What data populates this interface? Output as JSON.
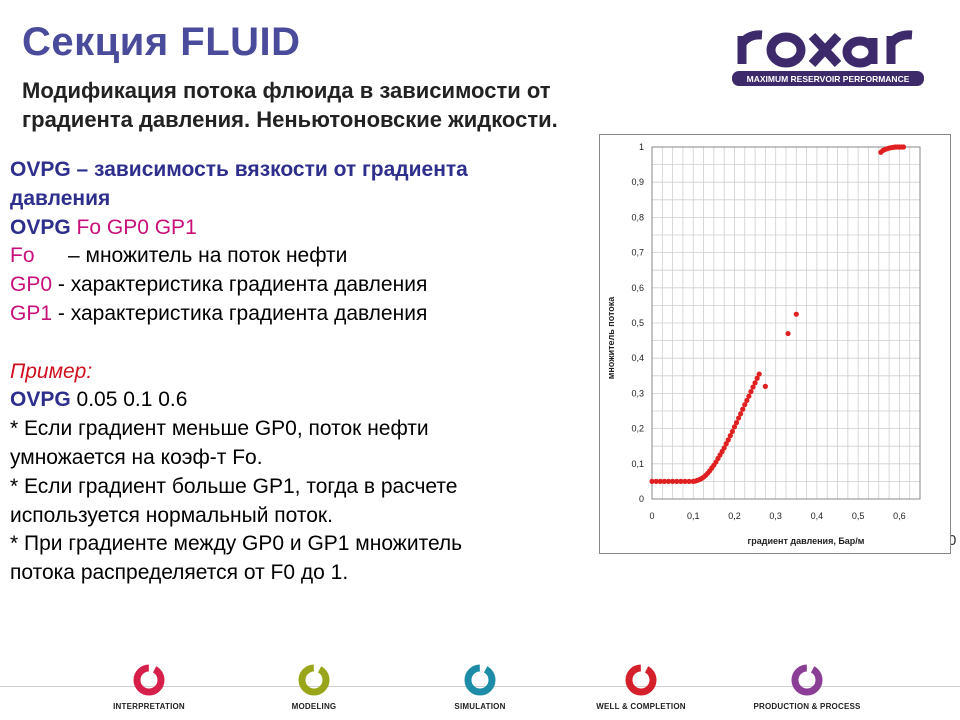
{
  "header": {
    "title": "Секция FLUID",
    "subtitle_line1": "Модификация потока флюида в зависимости от",
    "subtitle_line2": "градиента давления. Неньютоновские жидкости."
  },
  "logo": {
    "word": "roxar",
    "tagline": "MAXIMUM RESERVOIR PERFORMANCE",
    "color": "#3d2a6b"
  },
  "body": {
    "l1_kw": "OVPG",
    "l1_rest": " – зависимость вязкости от градиента",
    "l2": "давления",
    "l3_kw": "OVPG",
    "l3_args": "Fo  GP0  GP1",
    "l4_kw": "Fo",
    "l4_rest": "– множитель на поток нефти",
    "l5_kw": "GP0",
    "l5_rest": " - характеристика градиента давления",
    "l6_kw": "GP1",
    "l6_rest": " - характеристика градиента давления",
    "l8": "Пример:",
    "l9_kw": "OVPG",
    "l9_rest": " 0.05  0.1  0.6",
    "l10": "* Если градиент меньше GP0, поток нефти",
    "l11": "умножается на коэф-т Fo.",
    "l12": "* Если градиент больше GP1, тогда в расчете",
    "l13": "используется нормальный поток.",
    "l14": "* При градиенте между GP0 и GP1 множитель",
    "l15": "потока распределяется от F0 до 1."
  },
  "chart_data": {
    "type": "scatter",
    "xlabel": "градиент давления, Бар/м",
    "ylabel": "множитель потока",
    "xlim": [
      0,
      0.65
    ],
    "ylim": [
      0,
      1
    ],
    "xticks": [
      "0",
      "0,1",
      "0,2",
      "0,3",
      "0,4",
      "0,5",
      "0,6"
    ],
    "yticks": [
      "0",
      "0,1",
      "0,2",
      "0,3",
      "0,4",
      "0,5",
      "0,6",
      "0,7",
      "0,8",
      "0,9",
      "1"
    ],
    "grid": true,
    "marker_color": "#e02020",
    "series": [
      {
        "x": [
          0,
          0.01,
          0.02,
          0.03,
          0.04,
          0.05,
          0.06,
          0.07,
          0.08,
          0.09,
          0.1,
          0.105,
          0.11,
          0.115,
          0.12,
          0.125,
          0.13,
          0.135,
          0.14,
          0.145,
          0.15,
          0.155,
          0.16,
          0.165,
          0.17,
          0.175,
          0.18,
          0.185,
          0.19,
          0.195,
          0.2,
          0.205,
          0.21,
          0.215,
          0.22,
          0.225,
          0.23,
          0.235,
          0.24,
          0.245,
          0.25,
          0.255,
          0.26,
          0.275,
          0.33,
          0.35,
          0.555,
          0.56,
          0.565,
          0.57,
          0.575,
          0.58,
          0.585,
          0.59,
          0.595,
          0.6,
          0.605,
          0.61
        ],
        "y": [
          0.05,
          0.05,
          0.05,
          0.05,
          0.05,
          0.05,
          0.05,
          0.05,
          0.05,
          0.05,
          0.05,
          0.051,
          0.053,
          0.055,
          0.058,
          0.062,
          0.067,
          0.073,
          0.08,
          0.088,
          0.096,
          0.105,
          0.115,
          0.125,
          0.135,
          0.145,
          0.157,
          0.168,
          0.18,
          0.192,
          0.205,
          0.217,
          0.23,
          0.242,
          0.255,
          0.268,
          0.28,
          0.292,
          0.305,
          0.318,
          0.33,
          0.343,
          0.355,
          0.32,
          0.47,
          0.525,
          0.985,
          0.99,
          0.993,
          0.995,
          0.997,
          0.998,
          0.999,
          1.0,
          1.0,
          1.0,
          1.0,
          1.0
        ]
      }
    ]
  },
  "stub_text": "0",
  "footer": {
    "items": [
      {
        "label": "INTERPRETATION",
        "color": "#d6204b"
      },
      {
        "label": "MODELING",
        "color": "#9aa61a"
      },
      {
        "label": "SIMULATION",
        "color": "#1d8ca6"
      },
      {
        "label": "WELL & COMPLETION",
        "color": "#d4202a"
      },
      {
        "label": "PRODUCTION & PROCESS",
        "color": "#8b3e95"
      }
    ]
  }
}
